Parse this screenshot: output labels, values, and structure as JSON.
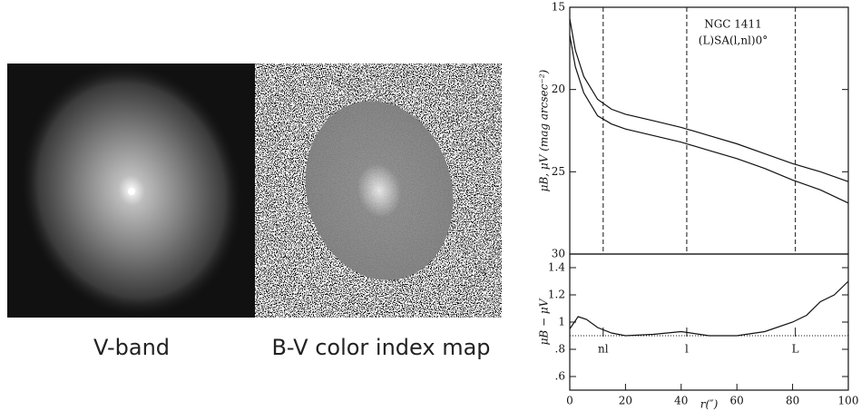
{
  "images": [
    {
      "label": "V-band"
    },
    {
      "label": "B-V color index map"
    }
  ],
  "chart_data": [
    {
      "type": "line",
      "annotations": [
        "NGC 1411",
        "(L)SA(l,nl)0°"
      ],
      "y_label": "μB, μV (mag arcsec⁻²)",
      "x": [
        0,
        2,
        5,
        10,
        15,
        20,
        30,
        40,
        50,
        60,
        70,
        80,
        90,
        100
      ],
      "series": [
        {
          "color": "#111111",
          "values": [
            15.7,
            17.6,
            19.2,
            20.6,
            21.2,
            21.5,
            21.9,
            22.3,
            22.8,
            23.3,
            23.9,
            24.5,
            25.0,
            25.6
          ]
        },
        {
          "color": "#111111",
          "values": [
            16.7,
            18.6,
            20.2,
            21.6,
            22.1,
            22.4,
            22.8,
            23.2,
            23.7,
            24.2,
            24.8,
            25.5,
            26.1,
            26.9
          ]
        }
      ],
      "xlim": [
        0,
        100
      ],
      "ylim": [
        30,
        15
      ],
      "yticks": [
        15,
        20,
        25,
        30
      ],
      "vlines": [
        12,
        42,
        81
      ]
    },
    {
      "type": "line",
      "y_label": "μB − μV",
      "x_label": "r(″)",
      "x": [
        0,
        3,
        6,
        10,
        15,
        20,
        30,
        40,
        50,
        60,
        70,
        80,
        85,
        90,
        95,
        100
      ],
      "series": [
        {
          "color": "#111111",
          "values": [
            0.95,
            1.04,
            1.02,
            0.96,
            0.92,
            0.9,
            0.91,
            0.93,
            0.9,
            0.9,
            0.93,
            1.0,
            1.05,
            1.15,
            1.2,
            1.3
          ]
        }
      ],
      "xlim": [
        0,
        100
      ],
      "ylim": [
        0.5,
        1.5
      ],
      "xticks": [
        0,
        20,
        40,
        60,
        80,
        100
      ],
      "yticks": [
        {
          "value": 0.6,
          "label": ".6"
        },
        {
          "value": 0.8,
          "label": ".8"
        },
        1,
        1.2,
        1.4
      ],
      "hline": 0.9,
      "markers": [
        {
          "value": 12,
          "label": "nl"
        },
        {
          "value": 42,
          "label": "l"
        },
        {
          "value": 81,
          "label": "L"
        }
      ]
    }
  ]
}
